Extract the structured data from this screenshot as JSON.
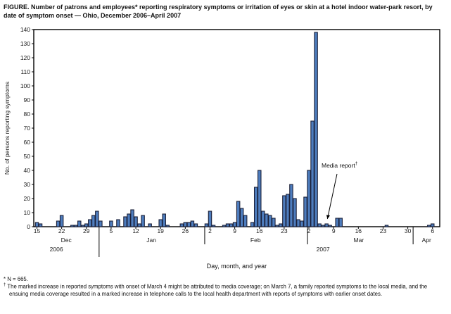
{
  "figure": {
    "title": "FIGURE. Number of patrons and employees* reporting respiratory symptoms or irritation of eyes or skin at a hotel indoor water-park resort, by date of symptom onset — Ohio, December 2006–April 2007"
  },
  "annotation": {
    "label": "Media report",
    "marker": "†",
    "points_to_date": "Mar 7"
  },
  "footnotes": [
    {
      "marker": "*",
      "text": " N = 665."
    },
    {
      "marker": "†",
      "text": " The marked increase in reported symptoms with onset of March 4 might be attributed to media coverage; on March 7, a family reported symptoms to the local media, and the ensuing media coverage resulted in a marked increase in telephone calls to the local health department with reports of symptoms with earlier onset dates."
    }
  ],
  "colors": {
    "bar_fill": "#4e7dbe",
    "bar_stroke": "#1b2038",
    "axis": "#000000",
    "text": "#1a1a1a",
    "background": "#ffffff"
  },
  "chart_data": {
    "type": "bar",
    "title": "Number of patrons and employees reporting respiratory symptoms or irritation of eyes or skin at a hotel indoor water-park resort, by date of symptom onset — Ohio, December 2006–April 2007",
    "xlabel": "Day, month, and year",
    "ylabel": "No. of persons reporting symptoms",
    "ylim": [
      0,
      140
    ],
    "y_tick_step": 10,
    "grid": false,
    "x_unit": "day offset from Dec 15, 2006",
    "bars": [
      {
        "date": "Dec 15",
        "o": 0,
        "v": 3
      },
      {
        "date": "Dec 16",
        "o": 1,
        "v": 2
      },
      {
        "date": "Dec 21",
        "o": 6,
        "v": 4
      },
      {
        "date": "Dec 22",
        "o": 7,
        "v": 8
      },
      {
        "date": "Dec 25",
        "o": 10,
        "v": 1
      },
      {
        "date": "Dec 26",
        "o": 11,
        "v": 1
      },
      {
        "date": "Dec 27",
        "o": 12,
        "v": 4
      },
      {
        "date": "Dec 28",
        "o": 13,
        "v": 1
      },
      {
        "date": "Dec 29",
        "o": 14,
        "v": 2
      },
      {
        "date": "Dec 30",
        "o": 15,
        "v": 5
      },
      {
        "date": "Dec 31",
        "o": 16,
        "v": 8
      },
      {
        "date": "Jan 1",
        "o": 17,
        "v": 11
      },
      {
        "date": "Jan 2",
        "o": 18,
        "v": 4
      },
      {
        "date": "Jan 5",
        "o": 21,
        "v": 4
      },
      {
        "date": "Jan 7",
        "o": 23,
        "v": 5
      },
      {
        "date": "Jan 9",
        "o": 25,
        "v": 7
      },
      {
        "date": "Jan 10",
        "o": 26,
        "v": 9
      },
      {
        "date": "Jan 11",
        "o": 27,
        "v": 12
      },
      {
        "date": "Jan 12",
        "o": 28,
        "v": 7
      },
      {
        "date": "Jan 13",
        "o": 29,
        "v": 2
      },
      {
        "date": "Jan 14",
        "o": 30,
        "v": 8
      },
      {
        "date": "Jan 16",
        "o": 32,
        "v": 2
      },
      {
        "date": "Jan 19",
        "o": 35,
        "v": 5
      },
      {
        "date": "Jan 20",
        "o": 36,
        "v": 9
      },
      {
        "date": "Jan 21",
        "o": 37,
        "v": 1
      },
      {
        "date": "Jan 25",
        "o": 41,
        "v": 2
      },
      {
        "date": "Jan 26",
        "o": 42,
        "v": 3
      },
      {
        "date": "Jan 27",
        "o": 43,
        "v": 3
      },
      {
        "date": "Jan 28",
        "o": 44,
        "v": 4
      },
      {
        "date": "Jan 29",
        "o": 45,
        "v": 2
      },
      {
        "date": "Feb 1",
        "o": 48,
        "v": 2
      },
      {
        "date": "Feb 2",
        "o": 49,
        "v": 11
      },
      {
        "date": "Feb 3",
        "o": 50,
        "v": 1
      },
      {
        "date": "Feb 6",
        "o": 53,
        "v": 1
      },
      {
        "date": "Feb 7",
        "o": 54,
        "v": 2
      },
      {
        "date": "Feb 8",
        "o": 55,
        "v": 2
      },
      {
        "date": "Feb 9",
        "o": 56,
        "v": 3
      },
      {
        "date": "Feb 10",
        "o": 57,
        "v": 18
      },
      {
        "date": "Feb 11",
        "o": 58,
        "v": 13
      },
      {
        "date": "Feb 12",
        "o": 59,
        "v": 8
      },
      {
        "date": "Feb 14",
        "o": 61,
        "v": 3
      },
      {
        "date": "Feb 15",
        "o": 62,
        "v": 28
      },
      {
        "date": "Feb 16",
        "o": 63,
        "v": 40
      },
      {
        "date": "Feb 17",
        "o": 64,
        "v": 11
      },
      {
        "date": "Feb 18",
        "o": 65,
        "v": 9
      },
      {
        "date": "Feb 19",
        "o": 66,
        "v": 8
      },
      {
        "date": "Feb 20",
        "o": 67,
        "v": 6
      },
      {
        "date": "Feb 21",
        "o": 68,
        "v": 1
      },
      {
        "date": "Feb 22",
        "o": 69,
        "v": 2
      },
      {
        "date": "Feb 23",
        "o": 70,
        "v": 22
      },
      {
        "date": "Feb 24",
        "o": 71,
        "v": 23
      },
      {
        "date": "Feb 25",
        "o": 72,
        "v": 30
      },
      {
        "date": "Feb 26",
        "o": 73,
        "v": 20
      },
      {
        "date": "Feb 27",
        "o": 74,
        "v": 5
      },
      {
        "date": "Feb 28",
        "o": 75,
        "v": 4
      },
      {
        "date": "Mar 1",
        "o": 76,
        "v": 21
      },
      {
        "date": "Mar 2",
        "o": 77,
        "v": 40
      },
      {
        "date": "Mar 3",
        "o": 78,
        "v": 75
      },
      {
        "date": "Mar 4",
        "o": 79,
        "v": 138
      },
      {
        "date": "Mar 5",
        "o": 80,
        "v": 2
      },
      {
        "date": "Mar 6",
        "o": 81,
        "v": 1
      },
      {
        "date": "Mar 7",
        "o": 82,
        "v": 2
      },
      {
        "date": "Mar 8",
        "o": 83,
        "v": 1
      },
      {
        "date": "Mar 10",
        "o": 85,
        "v": 6
      },
      {
        "date": "Mar 11",
        "o": 86,
        "v": 6
      },
      {
        "date": "Mar 24",
        "o": 99,
        "v": 1
      },
      {
        "date": "Apr 5",
        "o": 111,
        "v": 1
      },
      {
        "date": "Apr 6",
        "o": 112,
        "v": 2
      }
    ],
    "x_ticks": [
      {
        "o": 0,
        "label": "15"
      },
      {
        "o": 7,
        "label": "22"
      },
      {
        "o": 14,
        "label": "29"
      },
      {
        "o": 21,
        "label": "5"
      },
      {
        "o": 28,
        "label": "12"
      },
      {
        "o": 35,
        "label": "19"
      },
      {
        "o": 42,
        "label": "26"
      },
      {
        "o": 49,
        "label": "2"
      },
      {
        "o": 56,
        "label": "9"
      },
      {
        "o": 63,
        "label": "16"
      },
      {
        "o": 70,
        "label": "23"
      },
      {
        "o": 77,
        "label": "2"
      },
      {
        "o": 84,
        "label": "9"
      },
      {
        "o": 91,
        "label": "16"
      },
      {
        "o": 98,
        "label": "23"
      },
      {
        "o": 105,
        "label": "30"
      },
      {
        "o": 112,
        "label": "6"
      }
    ],
    "months": [
      {
        "label": "Dec",
        "o": 8.3
      },
      {
        "label": "Jan",
        "o": 32.4
      },
      {
        "label": "Feb",
        "o": 61.9
      },
      {
        "label": "Mar",
        "o": 91.1
      },
      {
        "label": "Apr",
        "o": 110.3
      }
    ],
    "month_separators": [
      {
        "o": 17.6,
        "year_boundary": true
      },
      {
        "o": 47.5,
        "year_boundary": false
      },
      {
        "o": 76.6,
        "year_boundary": false
      },
      {
        "o": 106.5,
        "year_boundary": false
      }
    ],
    "years": [
      {
        "label": "2006",
        "o": 5.5
      },
      {
        "label": "2007",
        "o": 81.0
      }
    ],
    "annotation_target": {
      "date": "Mar 7",
      "o": 82,
      "v": 2
    }
  }
}
